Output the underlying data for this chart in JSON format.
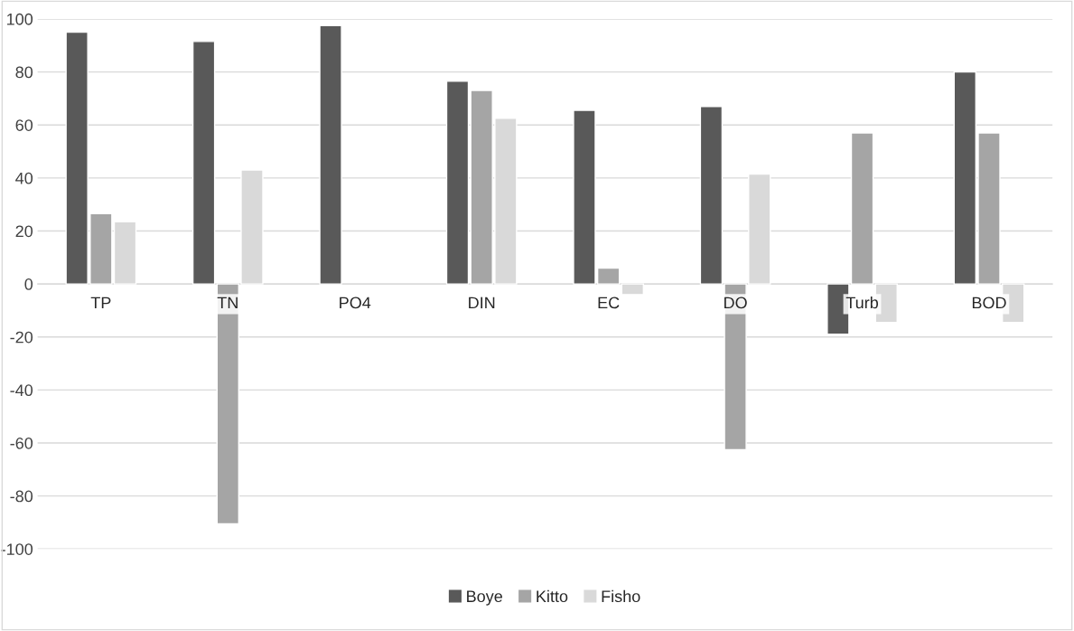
{
  "chart_data": {
    "type": "bar",
    "categories": [
      "TP",
      "TN",
      "PO4",
      "DIN",
      "EC",
      "DO",
      "Turb",
      "BOD"
    ],
    "series": [
      {
        "name": "Boye",
        "color": "#595959",
        "values": [
          95,
          91.5,
          97.5,
          76.5,
          65.5,
          67,
          -19,
          80
        ]
      },
      {
        "name": "Kitto",
        "color": "#a5a5a5",
        "values": [
          26.5,
          -90.5,
          null,
          73,
          6,
          -62.5,
          57,
          57
        ]
      },
      {
        "name": "Fisho",
        "color": "#d9d9d9",
        "values": [
          23.5,
          43,
          null,
          62.5,
          -4,
          41.5,
          -14.5,
          -14.5
        ]
      }
    ],
    "ylim": [
      -100,
      100
    ],
    "yticks": [
      -100,
      -80,
      -60,
      -40,
      -20,
      0,
      20,
      40,
      60,
      80,
      100
    ],
    "grid": "y",
    "legend": "bottom"
  }
}
